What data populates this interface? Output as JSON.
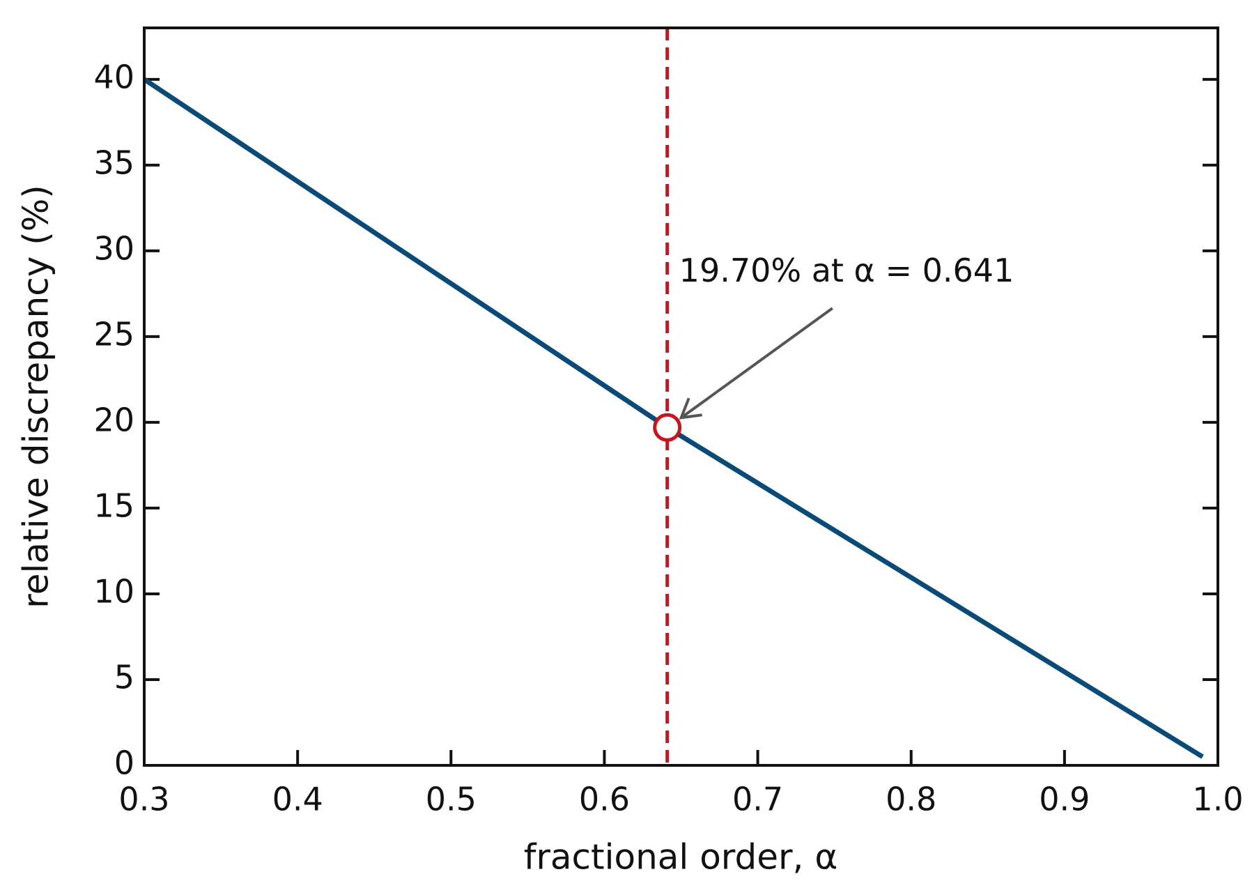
{
  "chart_data": {
    "type": "line",
    "xlabel": "fractional order, α",
    "ylabel": "relative discrepancy (%)",
    "series": [
      {
        "x": [
          0.3,
          0.641,
          0.99
        ],
        "values": [
          40,
          19.7,
          0.5
        ],
        "color": "#0a4a78"
      }
    ],
    "marker": {
      "x": 0.641,
      "y": 19.7,
      "color": "#c8141a"
    },
    "annotation": "19.70% at α = 0.641",
    "xlim": [
      0.3,
      1.0
    ],
    "ylim": [
      0,
      43
    ],
    "xticks": [
      0.3,
      0.4,
      0.5,
      0.6,
      0.7,
      0.8,
      0.9,
      {
        "value": 1,
        "label": "1.0"
      }
    ],
    "yticks": [
      0,
      5,
      10,
      15,
      20,
      25,
      30,
      35,
      40
    ],
    "grid": false
  }
}
